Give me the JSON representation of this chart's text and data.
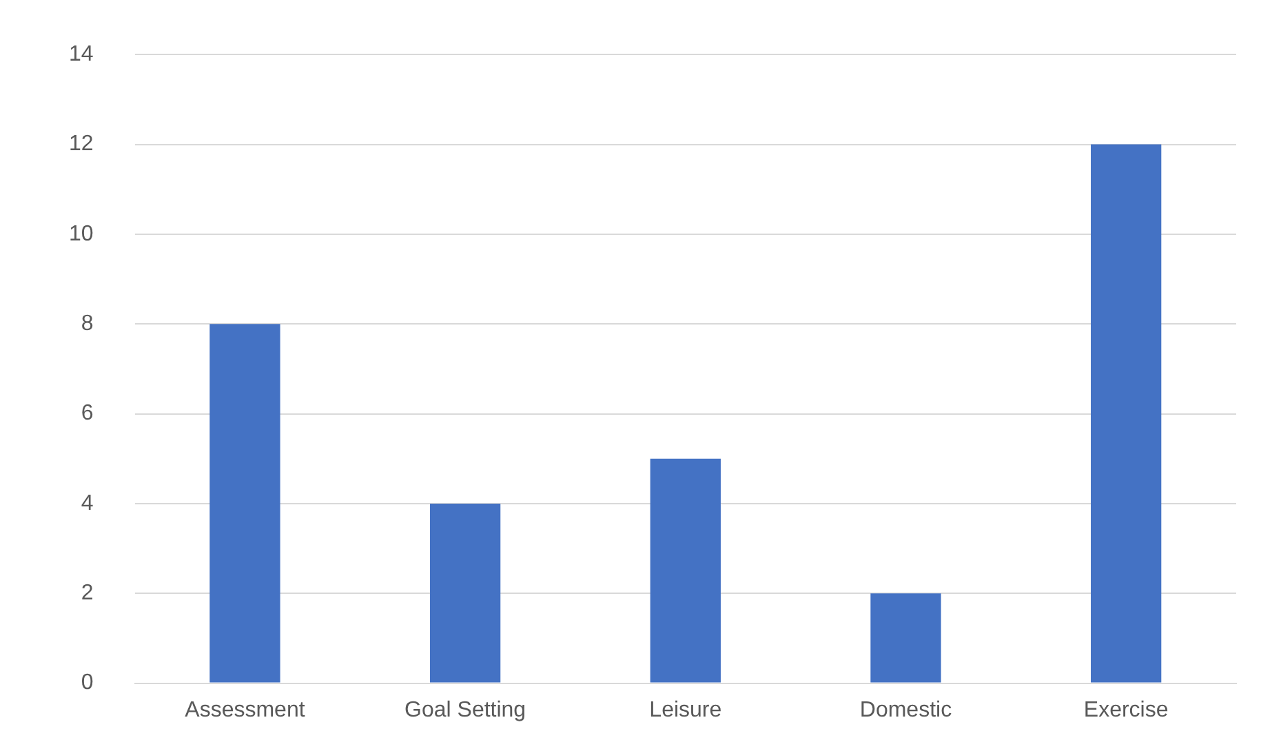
{
  "chart_data": {
    "type": "bar",
    "categories": [
      "Assessment",
      "Goal Setting",
      "Leisure",
      "Domestic",
      "Exercise"
    ],
    "values": [
      8,
      4,
      5,
      2,
      12
    ],
    "color": "#4472c4",
    "ylim": [
      0,
      14
    ],
    "yticks": [
      0,
      2,
      4,
      6,
      8,
      10,
      12,
      14
    ],
    "grid": "y"
  }
}
